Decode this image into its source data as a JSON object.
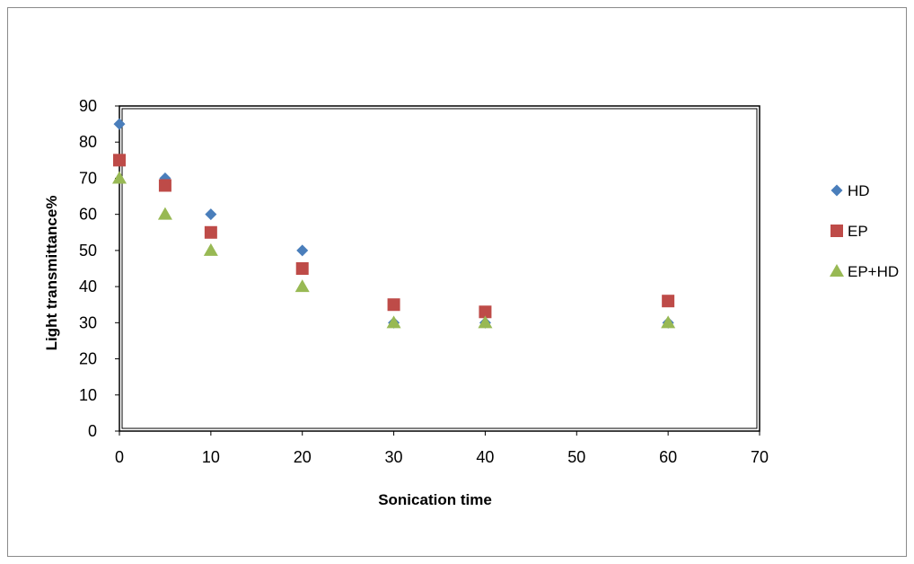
{
  "chart_data": {
    "type": "scatter",
    "title": "",
    "xlabel": "Sonication  time",
    "ylabel": "Light transmittance%",
    "xlim": [
      0,
      70
    ],
    "ylim": [
      0,
      90
    ],
    "xticks": [
      0,
      10,
      20,
      30,
      40,
      50,
      60,
      70
    ],
    "yticks": [
      0,
      10,
      20,
      30,
      40,
      50,
      60,
      70,
      80,
      90
    ],
    "grid": false,
    "legend_position": "right",
    "series": [
      {
        "name": "HD",
        "marker": "diamond",
        "color": "#4a7ebb",
        "points": [
          [
            0,
            85
          ],
          [
            5,
            70
          ],
          [
            10,
            60
          ],
          [
            20,
            50
          ],
          [
            30,
            30
          ],
          [
            40,
            30
          ],
          [
            60,
            30
          ]
        ]
      },
      {
        "name": "EP",
        "marker": "square",
        "color": "#be4b48",
        "points": [
          [
            0,
            75
          ],
          [
            5,
            68
          ],
          [
            10,
            55
          ],
          [
            20,
            45
          ],
          [
            30,
            35
          ],
          [
            40,
            33
          ],
          [
            60,
            36
          ]
        ]
      },
      {
        "name": "EP+HD",
        "marker": "triangle",
        "color": "#98b954",
        "points": [
          [
            0,
            70
          ],
          [
            5,
            60
          ],
          [
            10,
            50
          ],
          [
            20,
            40
          ],
          [
            30,
            30
          ],
          [
            40,
            30
          ],
          [
            60,
            30
          ]
        ]
      }
    ]
  }
}
